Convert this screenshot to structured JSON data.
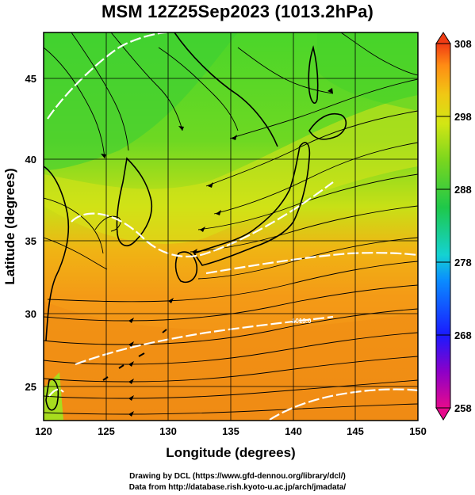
{
  "title": "MSM 12Z25Sep2023 (1013.2hPa)",
  "x_axis": {
    "label": "Longitude (degrees)",
    "ticks": [
      "120",
      "125",
      "130",
      "135",
      "140",
      "145",
      "150"
    ]
  },
  "y_axis": {
    "label": "Latitude  (degrees)",
    "ticks": [
      "25",
      "30",
      "35",
      "40",
      "45"
    ]
  },
  "colorbar": {
    "ticks": [
      "308",
      "298",
      "288",
      "278",
      "268",
      "258"
    ],
    "min": 258,
    "max": 308,
    "colors": [
      "#e60a8c",
      "#8c00c8",
      "#1a1aff",
      "#0a8cff",
      "#14d2d2",
      "#1ec84a",
      "#7ad61e",
      "#d2e614",
      "#f0c814",
      "#ff8c14",
      "#f03c14"
    ]
  },
  "contour_label": "1013.0",
  "credits": {
    "line1": "Drawing by DCL (https://www.gfd-dennou.org/library/dcl/)",
    "line2": "Data from http://database.rish.kyoto-u.ac.jp/arch/jmadata/"
  }
}
